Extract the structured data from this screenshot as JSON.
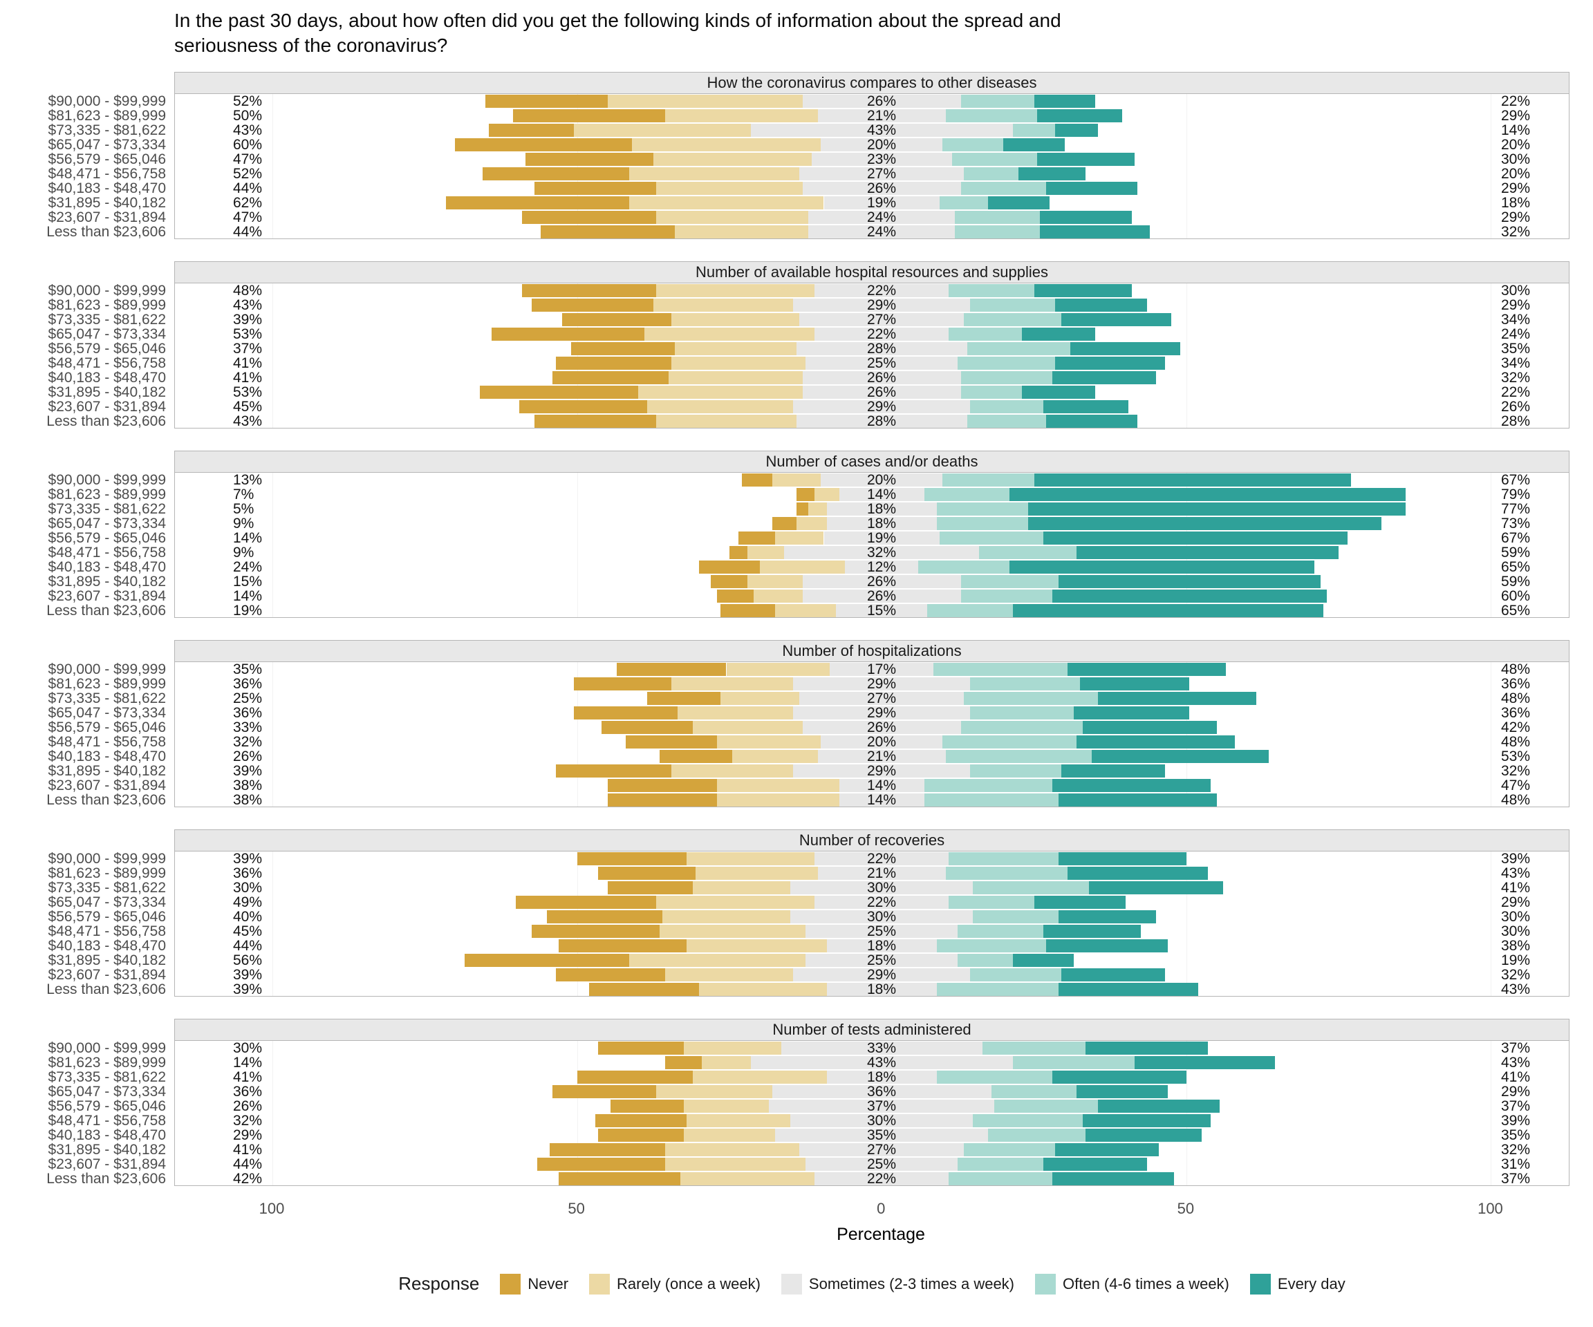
{
  "title": "In the past 30 days, about how often did you get the following kinds of information about the spread and seriousness of the coronavirus?",
  "xlabel": "Percentage",
  "legend": {
    "title": "Response",
    "items": [
      {
        "label": "Never",
        "color": "#d4a43c"
      },
      {
        "label": "Rarely (once a week)",
        "color": "#ecd9a4"
      },
      {
        "label": "Sometimes (2-3 times a week)",
        "color": "#e7e7e7"
      },
      {
        "label": "Often (4-6 times a week)",
        "color": "#a9dad1"
      },
      {
        "label": "Every day",
        "color": "#2fa199"
      }
    ]
  },
  "chart_data": {
    "type": "diverging-stacked-bar",
    "x_axis": {
      "label": "Percentage",
      "tick_values": [
        -100,
        -50,
        0,
        50,
        100
      ],
      "tick_labels": [
        "100",
        "50",
        "0",
        "50",
        "100"
      ],
      "range": [
        -116,
        113
      ]
    },
    "categories": [
      "$90,000 - $99,999",
      "$81,623 - $89,999",
      "$73,335 - $81,622",
      "$65,047 - $73,334",
      "$56,579 - $65,046",
      "$48,471 - $56,758",
      "$40,183 - $48,470",
      "$31,895 - $40,182",
      "$23,607 - $31,894",
      "Less than $23,606"
    ],
    "response_levels": [
      "Never",
      "Rarely (once a week)",
      "Sometimes (2-3 times a week)",
      "Often (4-6 times a week)",
      "Every day"
    ],
    "panels": [
      {
        "title": "How the coronavirus compares to other diseases",
        "rows": [
          {
            "labels": [
              "52%",
              "26%",
              "22%"
            ],
            "segments": [
              20,
              32,
              26,
              12,
              10
            ]
          },
          {
            "labels": [
              "50%",
              "21%",
              "29%"
            ],
            "segments": [
              25,
              25,
              21,
              15,
              14
            ]
          },
          {
            "labels": [
              "43%",
              "43%",
              "14%"
            ],
            "segments": [
              14,
              29,
              43,
              7,
              7
            ]
          },
          {
            "labels": [
              "60%",
              "20%",
              "20%"
            ],
            "segments": [
              29,
              31,
              20,
              10,
              10
            ]
          },
          {
            "labels": [
              "47%",
              "23%",
              "30%"
            ],
            "segments": [
              21,
              26,
              23,
              14,
              16
            ]
          },
          {
            "labels": [
              "52%",
              "27%",
              "20%"
            ],
            "segments": [
              24,
              28,
              27,
              9,
              11
            ]
          },
          {
            "labels": [
              "44%",
              "26%",
              "29%"
            ],
            "segments": [
              20,
              24,
              26,
              14,
              15
            ]
          },
          {
            "labels": [
              "62%",
              "19%",
              "18%"
            ],
            "segments": [
              30,
              32,
              19,
              8,
              10
            ]
          },
          {
            "labels": [
              "47%",
              "24%",
              "29%"
            ],
            "segments": [
              22,
              25,
              24,
              14,
              15
            ]
          },
          {
            "labels": [
              "44%",
              "24%",
              "32%"
            ],
            "segments": [
              22,
              22,
              24,
              14,
              18
            ]
          }
        ]
      },
      {
        "title": "Number of available hospital resources and supplies",
        "rows": [
          {
            "labels": [
              "48%",
              "22%",
              "30%"
            ],
            "segments": [
              22,
              26,
              22,
              14,
              16
            ]
          },
          {
            "labels": [
              "43%",
              "29%",
              "29%"
            ],
            "segments": [
              20,
              23,
              29,
              14,
              15
            ]
          },
          {
            "labels": [
              "39%",
              "27%",
              "34%"
            ],
            "segments": [
              18,
              21,
              27,
              16,
              18
            ]
          },
          {
            "labels": [
              "53%",
              "22%",
              "24%"
            ],
            "segments": [
              25,
              28,
              22,
              12,
              12
            ]
          },
          {
            "labels": [
              "37%",
              "28%",
              "35%"
            ],
            "segments": [
              17,
              20,
              28,
              17,
              18
            ]
          },
          {
            "labels": [
              "41%",
              "25%",
              "34%"
            ],
            "segments": [
              19,
              22,
              25,
              16,
              18
            ]
          },
          {
            "labels": [
              "41%",
              "26%",
              "32%"
            ],
            "segments": [
              19,
              22,
              26,
              15,
              17
            ]
          },
          {
            "labels": [
              "53%",
              "26%",
              "22%"
            ],
            "segments": [
              26,
              27,
              26,
              10,
              12
            ]
          },
          {
            "labels": [
              "45%",
              "29%",
              "26%"
            ],
            "segments": [
              21,
              24,
              29,
              12,
              14
            ]
          },
          {
            "labels": [
              "43%",
              "28%",
              "28%"
            ],
            "segments": [
              20,
              23,
              28,
              13,
              15
            ]
          }
        ]
      },
      {
        "title": "Number of cases and/or deaths",
        "rows": [
          {
            "labels": [
              "13%",
              "20%",
              "67%"
            ],
            "segments": [
              5,
              8,
              20,
              15,
              52
            ]
          },
          {
            "labels": [
              "7%",
              "14%",
              "79%"
            ],
            "segments": [
              3,
              4,
              14,
              14,
              65
            ]
          },
          {
            "labels": [
              "5%",
              "18%",
              "77%"
            ],
            "segments": [
              2,
              3,
              18,
              15,
              62
            ]
          },
          {
            "labels": [
              "9%",
              "18%",
              "73%"
            ],
            "segments": [
              4,
              5,
              18,
              15,
              58
            ]
          },
          {
            "labels": [
              "14%",
              "19%",
              "67%"
            ],
            "segments": [
              6,
              8,
              19,
              17,
              50
            ]
          },
          {
            "labels": [
              "9%",
              "32%",
              "59%"
            ],
            "segments": [
              3,
              6,
              32,
              16,
              43
            ]
          },
          {
            "labels": [
              "24%",
              "12%",
              "65%"
            ],
            "segments": [
              10,
              14,
              12,
              15,
              50
            ]
          },
          {
            "labels": [
              "15%",
              "26%",
              "59%"
            ],
            "segments": [
              6,
              9,
              26,
              16,
              43
            ]
          },
          {
            "labels": [
              "14%",
              "26%",
              "60%"
            ],
            "segments": [
              6,
              8,
              26,
              15,
              45
            ]
          },
          {
            "labels": [
              "19%",
              "15%",
              "65%"
            ],
            "segments": [
              9,
              10,
              15,
              14,
              51
            ]
          }
        ]
      },
      {
        "title": "Number of hospitalizations",
        "rows": [
          {
            "labels": [
              "35%",
              "17%",
              "48%"
            ],
            "segments": [
              18,
              17,
              17,
              22,
              26
            ]
          },
          {
            "labels": [
              "36%",
              "29%",
              "36%"
            ],
            "segments": [
              16,
              20,
              29,
              18,
              18
            ]
          },
          {
            "labels": [
              "25%",
              "27%",
              "48%"
            ],
            "segments": [
              12,
              13,
              27,
              22,
              26
            ]
          },
          {
            "labels": [
              "36%",
              "29%",
              "36%"
            ],
            "segments": [
              17,
              19,
              29,
              17,
              19
            ]
          },
          {
            "labels": [
              "33%",
              "26%",
              "42%"
            ],
            "segments": [
              15,
              18,
              26,
              20,
              22
            ]
          },
          {
            "labels": [
              "32%",
              "20%",
              "48%"
            ],
            "segments": [
              15,
              17,
              20,
              22,
              26
            ]
          },
          {
            "labels": [
              "26%",
              "21%",
              "53%"
            ],
            "segments": [
              12,
              14,
              21,
              24,
              29
            ]
          },
          {
            "labels": [
              "39%",
              "29%",
              "32%"
            ],
            "segments": [
              19,
              20,
              29,
              15,
              17
            ]
          },
          {
            "labels": [
              "38%",
              "14%",
              "47%"
            ],
            "segments": [
              18,
              20,
              14,
              21,
              26
            ]
          },
          {
            "labels": [
              "38%",
              "14%",
              "48%"
            ],
            "segments": [
              18,
              20,
              14,
              22,
              26
            ]
          }
        ]
      },
      {
        "title": "Number of recoveries",
        "rows": [
          {
            "labels": [
              "39%",
              "22%",
              "39%"
            ],
            "segments": [
              18,
              21,
              22,
              18,
              21
            ]
          },
          {
            "labels": [
              "36%",
              "21%",
              "43%"
            ],
            "segments": [
              16,
              20,
              21,
              20,
              23
            ]
          },
          {
            "labels": [
              "30%",
              "30%",
              "41%"
            ],
            "segments": [
              14,
              16,
              30,
              19,
              22
            ]
          },
          {
            "labels": [
              "49%",
              "22%",
              "29%"
            ],
            "segments": [
              23,
              26,
              22,
              14,
              15
            ]
          },
          {
            "labels": [
              "40%",
              "30%",
              "30%"
            ],
            "segments": [
              19,
              21,
              30,
              14,
              16
            ]
          },
          {
            "labels": [
              "45%",
              "25%",
              "30%"
            ],
            "segments": [
              21,
              24,
              25,
              14,
              16
            ]
          },
          {
            "labels": [
              "44%",
              "18%",
              "38%"
            ],
            "segments": [
              21,
              23,
              18,
              18,
              20
            ]
          },
          {
            "labels": [
              "56%",
              "25%",
              "19%"
            ],
            "segments": [
              27,
              29,
              25,
              9,
              10
            ]
          },
          {
            "labels": [
              "39%",
              "29%",
              "32%"
            ],
            "segments": [
              18,
              21,
              29,
              15,
              17
            ]
          },
          {
            "labels": [
              "39%",
              "18%",
              "43%"
            ],
            "segments": [
              18,
              21,
              18,
              20,
              23
            ]
          }
        ]
      },
      {
        "title": "Number of tests administered",
        "rows": [
          {
            "labels": [
              "30%",
              "33%",
              "37%"
            ],
            "segments": [
              14,
              16,
              33,
              17,
              20
            ]
          },
          {
            "labels": [
              "14%",
              "43%",
              "43%"
            ],
            "segments": [
              6,
              8,
              43,
              20,
              23
            ]
          },
          {
            "labels": [
              "41%",
              "18%",
              "41%"
            ],
            "segments": [
              19,
              22,
              18,
              19,
              22
            ]
          },
          {
            "labels": [
              "36%",
              "36%",
              "29%"
            ],
            "segments": [
              17,
              19,
              36,
              14,
              15
            ]
          },
          {
            "labels": [
              "26%",
              "37%",
              "37%"
            ],
            "segments": [
              12,
              14,
              37,
              17,
              20
            ]
          },
          {
            "labels": [
              "32%",
              "30%",
              "39%"
            ],
            "segments": [
              15,
              17,
              30,
              18,
              21
            ]
          },
          {
            "labels": [
              "29%",
              "35%",
              "35%"
            ],
            "segments": [
              14,
              15,
              35,
              16,
              19
            ]
          },
          {
            "labels": [
              "41%",
              "27%",
              "32%"
            ],
            "segments": [
              19,
              22,
              27,
              15,
              17
            ]
          },
          {
            "labels": [
              "44%",
              "25%",
              "31%"
            ],
            "segments": [
              21,
              23,
              25,
              14,
              17
            ]
          },
          {
            "labels": [
              "42%",
              "22%",
              "37%"
            ],
            "segments": [
              20,
              22,
              22,
              17,
              20
            ]
          }
        ]
      }
    ]
  }
}
